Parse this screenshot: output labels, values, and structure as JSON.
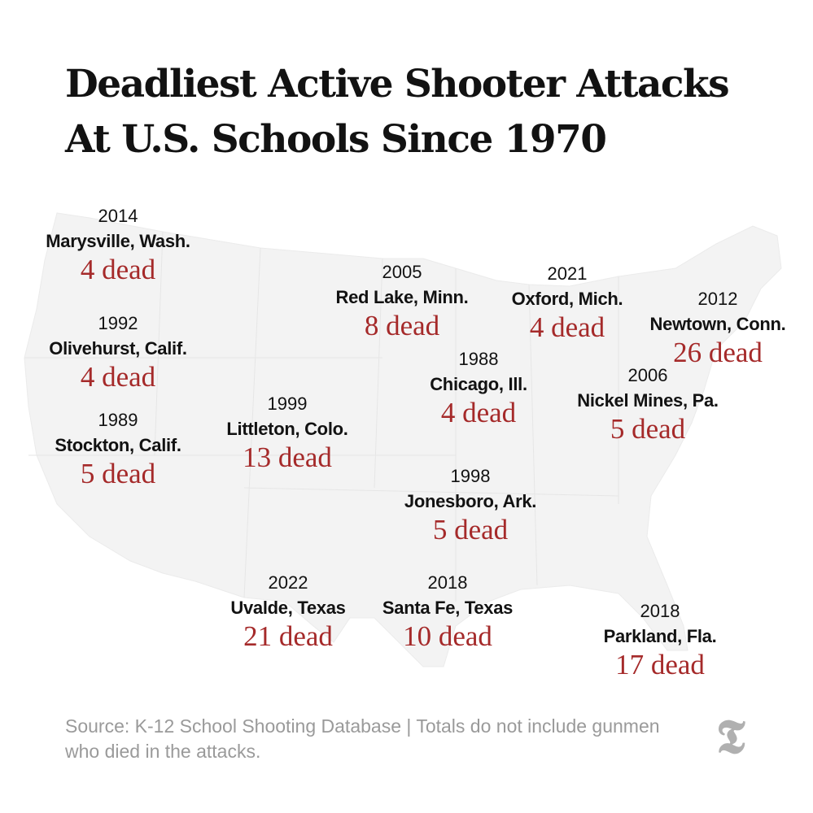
{
  "title_lines": [
    "Deadliest Active Shooter Attacks",
    "At U.S. Schools Since 1970"
  ],
  "colors": {
    "dead": "#a52a2a",
    "text": "#121212",
    "map_fill": "#f2f2f2",
    "source": "#9a9a9a"
  },
  "attacks": [
    {
      "year": "2014",
      "place": "Marysville, Wash.",
      "dead": "4 dead"
    },
    {
      "year": "1992",
      "place": "Olivehurst, Calif.",
      "dead": "4 dead"
    },
    {
      "year": "1989",
      "place": "Stockton, Calif.",
      "dead": "5 dead"
    },
    {
      "year": "1999",
      "place": "Littleton, Colo.",
      "dead": "13 dead"
    },
    {
      "year": "2005",
      "place": "Red Lake, Minn.",
      "dead": "8 dead"
    },
    {
      "year": "2021",
      "place": "Oxford, Mich.",
      "dead": "4 dead"
    },
    {
      "year": "2012",
      "place": "Newtown, Conn.",
      "dead": "26 dead"
    },
    {
      "year": "1988",
      "place": "Chicago, Ill.",
      "dead": "4 dead"
    },
    {
      "year": "2006",
      "place": "Nickel Mines, Pa.",
      "dead": "5 dead"
    },
    {
      "year": "1998",
      "place": "Jonesboro, Ark.",
      "dead": "5 dead"
    },
    {
      "year": "2022",
      "place": "Uvalde, Texas",
      "dead": "21 dead"
    },
    {
      "year": "2018",
      "place": "Santa Fe, Texas",
      "dead": "10 dead"
    },
    {
      "year": "2018",
      "place": "Parkland, Fla.",
      "dead": "17 dead"
    }
  ],
  "source": "Source: K-12 School Shooting Database | Totals do not include gunmen who died in the attacks.",
  "logo": "T",
  "logo_icon": "nyt-logo-icon"
}
